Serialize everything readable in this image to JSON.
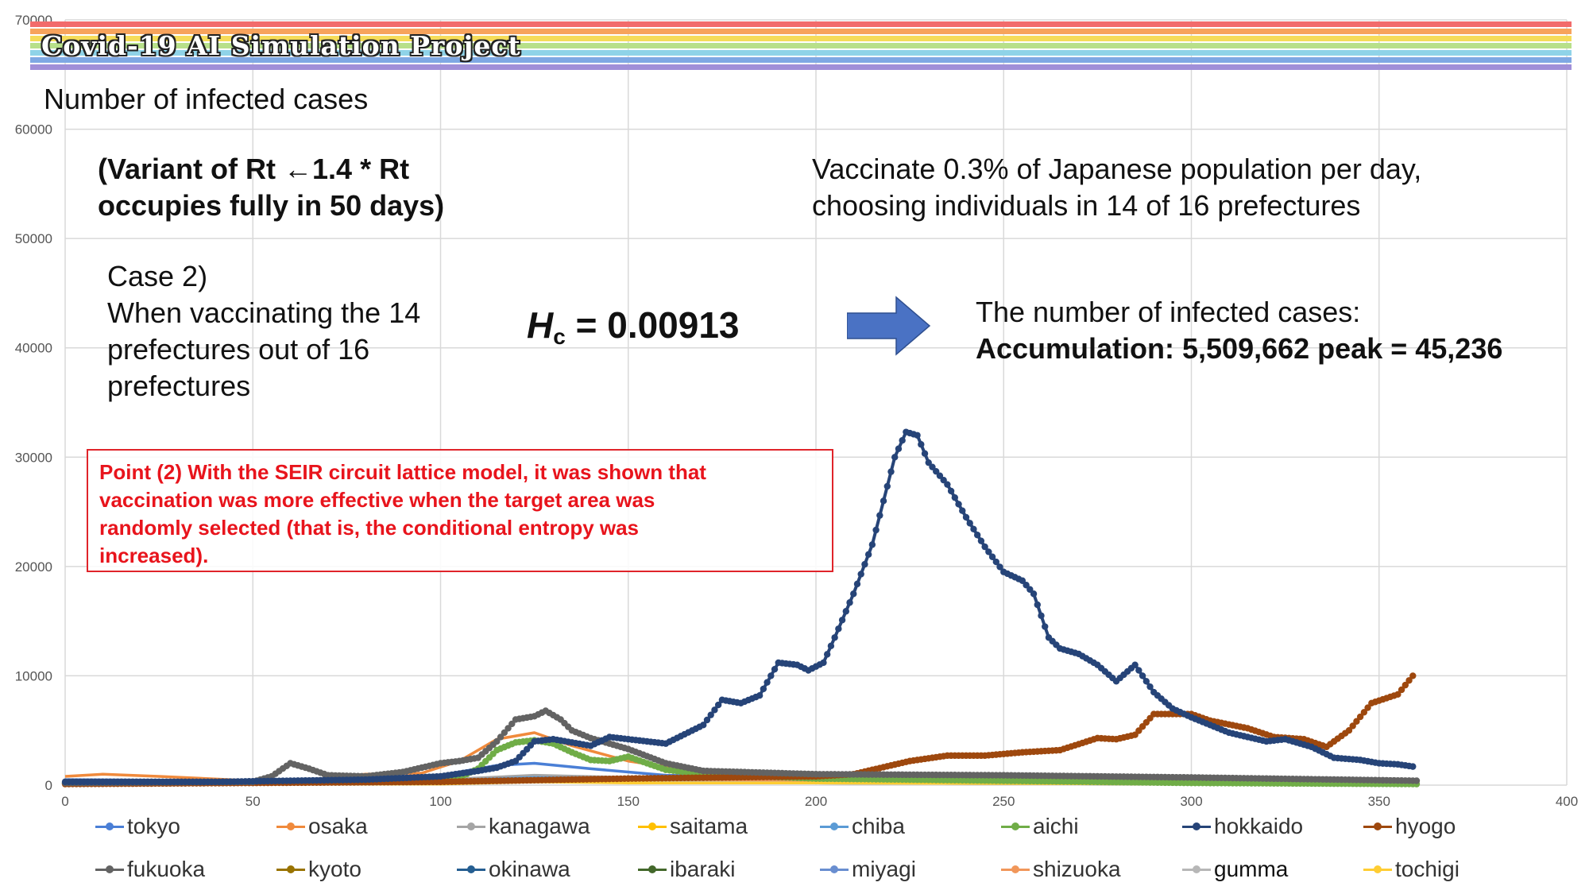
{
  "banner": {
    "title": "Covid-19 AI Simulation Project",
    "stripe_colors": [
      "#f26b6b",
      "#f7a35c",
      "#f5dc5a",
      "#b8e08a",
      "#8fd3e8",
      "#7fa8e3",
      "#a08fd8"
    ]
  },
  "texts": {
    "subtitle": "Number of infected cases",
    "variant_line1": "(Variant of Rt ←1.4 * Rt",
    "variant_line2": "occupies fully in 50 days)",
    "vaccinate_line1": "Vaccinate 0.3% of Japanese population per day,",
    "vaccinate_line2": "choosing individuals in 14 of 16 prefectures",
    "case_line1": "Case 2)",
    "case_line2": "When vaccinating the 14",
    "case_line3": "prefectures out of 16",
    "case_line4": "prefectures",
    "hc_symbol": "H",
    "hc_subscript": "c",
    "hc_value": " = 0.00913",
    "result_line1": "The number of infected cases:",
    "result_line2": "Accumulation: 5,509,662 peak = 45,236",
    "point": "Point (2) With the SEIR circuit lattice model, it was shown that\nvaccination was more effective when the target area was\nrandomly selected (that is, the conditional entropy was\nincreased)."
  },
  "colors": {
    "arrow": "#4a72c4",
    "point_text": "#e8141c",
    "point_border": "#e0242a",
    "grid": "#d9d9d9"
  },
  "chart_data": {
    "type": "line",
    "xlim": [
      0,
      400
    ],
    "ylim": [
      0,
      70000
    ],
    "x_ticks": [
      "0",
      "50",
      "100",
      "150",
      "200",
      "250",
      "300",
      "350",
      "400"
    ],
    "y_ticks": [
      "0",
      "10000",
      "20000",
      "30000",
      "40000",
      "50000",
      "60000",
      "70000"
    ],
    "grid": true,
    "legend_position": "bottom",
    "series": [
      {
        "name": "tokyo",
        "color": "#4a7fd6",
        "marker": false,
        "points": [
          [
            0,
            500
          ],
          [
            50,
            400
          ],
          [
            100,
            900
          ],
          [
            115,
            1800
          ],
          [
            125,
            2000
          ],
          [
            140,
            1500
          ],
          [
            160,
            900
          ],
          [
            200,
            700
          ],
          [
            250,
            500
          ],
          [
            300,
            300
          ],
          [
            360,
            200
          ]
        ]
      },
      {
        "name": "osaka",
        "color": "#f08a3c",
        "marker": false,
        "points": [
          [
            0,
            800
          ],
          [
            10,
            1000
          ],
          [
            25,
            800
          ],
          [
            50,
            400
          ],
          [
            70,
            600
          ],
          [
            80,
            1000
          ],
          [
            95,
            1100
          ],
          [
            105,
            2200
          ],
          [
            115,
            4200
          ],
          [
            125,
            4800
          ],
          [
            135,
            3600
          ],
          [
            150,
            2200
          ],
          [
            170,
            1200
          ],
          [
            200,
            900
          ],
          [
            250,
            600
          ],
          [
            300,
            300
          ],
          [
            360,
            200
          ]
        ]
      },
      {
        "name": "kanagawa",
        "color": "#a5a5a5",
        "marker": false,
        "points": [
          [
            0,
            400
          ],
          [
            60,
            300
          ],
          [
            100,
            500
          ],
          [
            125,
            900
          ],
          [
            150,
            700
          ],
          [
            200,
            500
          ],
          [
            300,
            300
          ],
          [
            360,
            200
          ]
        ]
      },
      {
        "name": "saitama",
        "color": "#ffc000",
        "marker": false,
        "points": [
          [
            0,
            200
          ],
          [
            60,
            200
          ],
          [
            100,
            400
          ],
          [
            120,
            600
          ],
          [
            150,
            500
          ],
          [
            200,
            300
          ],
          [
            300,
            200
          ],
          [
            360,
            100
          ]
        ]
      },
      {
        "name": "chiba",
        "color": "#5b9bd5",
        "marker": false,
        "points": [
          [
            0,
            300
          ],
          [
            60,
            300
          ],
          [
            100,
            400
          ],
          [
            125,
            700
          ],
          [
            150,
            600
          ],
          [
            200,
            400
          ],
          [
            300,
            200
          ],
          [
            360,
            100
          ]
        ]
      },
      {
        "name": "aichi",
        "color": "#70ad47",
        "marker": true,
        "points": [
          [
            0,
            200
          ],
          [
            90,
            300
          ],
          [
            105,
            700
          ],
          [
            110,
            1500
          ],
          [
            115,
            3200
          ],
          [
            120,
            3900
          ],
          [
            125,
            4100
          ],
          [
            130,
            3800
          ],
          [
            135,
            3000
          ],
          [
            140,
            2300
          ],
          [
            145,
            2200
          ],
          [
            150,
            2600
          ],
          [
            155,
            2000
          ],
          [
            160,
            1400
          ],
          [
            170,
            1000
          ],
          [
            200,
            600
          ],
          [
            250,
            400
          ],
          [
            300,
            200
          ],
          [
            360,
            100
          ]
        ]
      },
      {
        "name": "hokkaido",
        "color": "#264478",
        "marker": true,
        "points": [
          [
            0,
            300
          ],
          [
            40,
            300
          ],
          [
            80,
            500
          ],
          [
            100,
            800
          ],
          [
            110,
            1300
          ],
          [
            115,
            1600
          ],
          [
            120,
            2200
          ],
          [
            125,
            4000
          ],
          [
            130,
            4200
          ],
          [
            135,
            3900
          ],
          [
            140,
            3600
          ],
          [
            145,
            4400
          ],
          [
            150,
            4200
          ],
          [
            160,
            3800
          ],
          [
            170,
            5500
          ],
          [
            175,
            7800
          ],
          [
            180,
            7500
          ],
          [
            185,
            8200
          ],
          [
            190,
            11200
          ],
          [
            195,
            11000
          ],
          [
            198,
            10500
          ],
          [
            202,
            11200
          ],
          [
            205,
            13500
          ],
          [
            210,
            17500
          ],
          [
            215,
            22000
          ],
          [
            218,
            26000
          ],
          [
            221,
            30000
          ],
          [
            224,
            32300
          ],
          [
            227,
            32000
          ],
          [
            230,
            29500
          ],
          [
            235,
            27500
          ],
          [
            240,
            24500
          ],
          [
            245,
            21800
          ],
          [
            250,
            19500
          ],
          [
            255,
            18700
          ],
          [
            258,
            17500
          ],
          [
            262,
            13500
          ],
          [
            265,
            12500
          ],
          [
            270,
            12000
          ],
          [
            275,
            11000
          ],
          [
            280,
            9500
          ],
          [
            285,
            11000
          ],
          [
            290,
            8500
          ],
          [
            295,
            7000
          ],
          [
            300,
            6200
          ],
          [
            305,
            5500
          ],
          [
            310,
            4800
          ],
          [
            320,
            4000
          ],
          [
            325,
            4200
          ],
          [
            332,
            3500
          ],
          [
            338,
            2500
          ],
          [
            345,
            2300
          ],
          [
            350,
            2000
          ],
          [
            355,
            1900
          ],
          [
            359,
            1700
          ]
        ]
      },
      {
        "name": "hyogo",
        "color": "#9e480e",
        "marker": true,
        "points": [
          [
            0,
            100
          ],
          [
            100,
            300
          ],
          [
            150,
            600
          ],
          [
            200,
            800
          ],
          [
            210,
            1000
          ],
          [
            225,
            2200
          ],
          [
            235,
            2700
          ],
          [
            245,
            2700
          ],
          [
            255,
            3000
          ],
          [
            265,
            3200
          ],
          [
            275,
            4300
          ],
          [
            280,
            4200
          ],
          [
            285,
            4600
          ],
          [
            290,
            6500
          ],
          [
            300,
            6500
          ],
          [
            305,
            5900
          ],
          [
            315,
            5200
          ],
          [
            322,
            4400
          ],
          [
            330,
            4200
          ],
          [
            336,
            3500
          ],
          [
            342,
            5000
          ],
          [
            348,
            7500
          ],
          [
            355,
            8300
          ],
          [
            359,
            10000
          ]
        ]
      },
      {
        "name": "fukuoka",
        "color": "#636363",
        "marker": true,
        "points": [
          [
            0,
            200
          ],
          [
            50,
            300
          ],
          [
            55,
            800
          ],
          [
            60,
            2000
          ],
          [
            65,
            1500
          ],
          [
            70,
            900
          ],
          [
            80,
            800
          ],
          [
            90,
            1200
          ],
          [
            95,
            1600
          ],
          [
            100,
            2000
          ],
          [
            105,
            2200
          ],
          [
            110,
            2500
          ],
          [
            115,
            4000
          ],
          [
            120,
            6000
          ],
          [
            125,
            6300
          ],
          [
            128,
            6800
          ],
          [
            132,
            6000
          ],
          [
            135,
            5000
          ],
          [
            140,
            4300
          ],
          [
            145,
            3800
          ],
          [
            150,
            3300
          ],
          [
            160,
            2000
          ],
          [
            170,
            1300
          ],
          [
            200,
            1000
          ],
          [
            250,
            900
          ],
          [
            300,
            700
          ],
          [
            360,
            400
          ]
        ]
      },
      {
        "name": "kyoto",
        "color": "#997300",
        "marker": false,
        "points": [
          [
            0,
            100
          ],
          [
            60,
            100
          ],
          [
            100,
            200
          ],
          [
            125,
            500
          ],
          [
            150,
            400
          ],
          [
            200,
            300
          ],
          [
            300,
            200
          ],
          [
            360,
            100
          ]
        ]
      },
      {
        "name": "okinawa",
        "color": "#255e91",
        "marker": false,
        "points": [
          [
            0,
            200
          ],
          [
            60,
            200
          ],
          [
            100,
            300
          ],
          [
            125,
            500
          ],
          [
            150,
            400
          ],
          [
            200,
            300
          ],
          [
            300,
            300
          ],
          [
            360,
            300
          ]
        ]
      },
      {
        "name": "ibaraki",
        "color": "#43682b",
        "marker": false,
        "points": [
          [
            0,
            100
          ],
          [
            60,
            100
          ],
          [
            100,
            200
          ],
          [
            125,
            400
          ],
          [
            150,
            300
          ],
          [
            200,
            200
          ],
          [
            300,
            100
          ],
          [
            360,
            100
          ]
        ]
      },
      {
        "name": "miyagi",
        "color": "#698ed0",
        "marker": false,
        "points": [
          [
            0,
            100
          ],
          [
            60,
            100
          ],
          [
            100,
            200
          ],
          [
            125,
            400
          ],
          [
            150,
            300
          ],
          [
            200,
            200
          ],
          [
            300,
            100
          ],
          [
            360,
            100
          ]
        ]
      },
      {
        "name": "shizuoka",
        "color": "#f1975a",
        "marker": false,
        "points": [
          [
            0,
            200
          ],
          [
            60,
            200
          ],
          [
            100,
            300
          ],
          [
            125,
            600
          ],
          [
            150,
            500
          ],
          [
            200,
            300
          ],
          [
            300,
            200
          ],
          [
            360,
            100
          ]
        ]
      },
      {
        "name": "gumma",
        "color": "#b7b7b7",
        "marker": false,
        "points": [
          [
            0,
            100
          ],
          [
            60,
            100
          ],
          [
            100,
            200
          ],
          [
            125,
            300
          ],
          [
            150,
            300
          ],
          [
            200,
            200
          ],
          [
            300,
            100
          ],
          [
            360,
            100
          ]
        ]
      },
      {
        "name": "tochigi",
        "color": "#ffcd33",
        "marker": false,
        "points": [
          [
            0,
            100
          ],
          [
            60,
            100
          ],
          [
            100,
            100
          ],
          [
            125,
            300
          ],
          [
            150,
            200
          ],
          [
            200,
            200
          ],
          [
            300,
            100
          ],
          [
            360,
            100
          ]
        ]
      }
    ]
  }
}
